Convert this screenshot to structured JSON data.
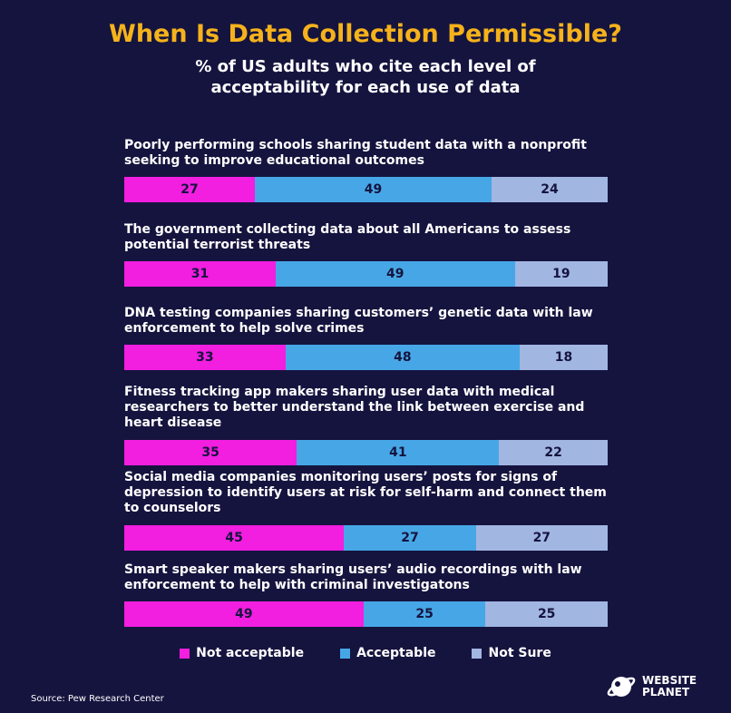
{
  "title": "When Is Data Collection Permissible?",
  "subtitle": "% of US adults who cite each level of acceptability for each use of data",
  "source": "Source: Pew Research Center",
  "logo": {
    "line1": "WEBSITE",
    "line2": "PLANET",
    "icon": "planet-logo-icon"
  },
  "colors": {
    "background": "#15143f",
    "title": "#f6b21b",
    "not_acceptable": "#f21ee0",
    "acceptable": "#47a7e6",
    "not_sure": "#a2b6e2"
  },
  "legend": [
    "Not acceptable",
    "Acceptable",
    "Not Sure"
  ],
  "chart_data": {
    "type": "bar",
    "orientation": "horizontal",
    "stacked": true,
    "title": "When Is Data Collection Permissible?",
    "subtitle": "% of US adults who cite each level of acceptability for each use of data",
    "categories": [
      "Poorly performing schools sharing student data with a nonprofit seeking to improve educational outcomes",
      "The government collecting data about all Americans to assess potential terrorist threats",
      "DNA testing companies sharing customers’ genetic data with law enforcement to help solve crimes",
      "Fitness tracking app makers sharing user data with medical researchers to better understand the link between exercise and heart disease",
      "Social media companies monitoring users’ posts for signs of depression to identify users at risk for self-harm and connect them to counselors",
      "Smart speaker makers sharing users’ audio recordings with law enforcement to help with criminal investigatons"
    ],
    "series": [
      {
        "name": "Not acceptable",
        "values": [
          27,
          31,
          33,
          35,
          45,
          49
        ]
      },
      {
        "name": "Acceptable",
        "values": [
          49,
          49,
          48,
          41,
          27,
          25
        ]
      },
      {
        "name": "Not Sure",
        "values": [
          24,
          19,
          18,
          22,
          27,
          25
        ]
      }
    ],
    "legend_position": "bottom",
    "grid": false
  }
}
